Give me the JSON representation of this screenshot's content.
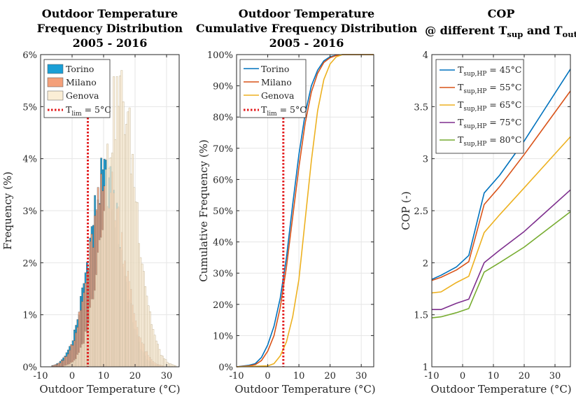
{
  "chart_data": [
    {
      "type": "bar",
      "title": [
        "Outdoor Temperature",
        "Frequency Distribution",
        "2005 - 2016"
      ],
      "xlabel": "Outdoor Temperature (°C)",
      "ylabel": "Frequency (%)",
      "xlim": [
        -10,
        34
      ],
      "ylim": [
        0,
        6
      ],
      "xticks": [
        "-10",
        "0",
        "10",
        "20",
        "30"
      ],
      "yticks": [
        "0%",
        "1%",
        "2%",
        "3%",
        "4%",
        "5%",
        "6%"
      ],
      "grid": true,
      "legend_position": "top-left",
      "series": [
        {
          "name": "Torino",
          "color": "#1a9fd6",
          "mean": 10.5,
          "sd": 5.3,
          "peak": 3.6
        },
        {
          "name": "Milano",
          "color": "#f4a07a",
          "mean": 11.2,
          "sd": 5.5,
          "peak": 3.5
        },
        {
          "name": "Genova",
          "color": "#fbeed6",
          "mean": 15.2,
          "sd": 5.3,
          "peak": 5.2
        }
      ],
      "reference_line": {
        "x": 5,
        "label_main": "T",
        "label_sub": "lim",
        "label_rest": " = 5°C",
        "color": "#e31a1c"
      }
    },
    {
      "type": "line",
      "title": [
        "Outdoor Temperature",
        "Cumulative Frequency Distribution",
        "2005 - 2016"
      ],
      "xlabel": "Outdoor Temperature (°C)",
      "ylabel": "Cumulative Frequency (%)",
      "xlim": [
        -10,
        34
      ],
      "ylim": [
        0,
        100
      ],
      "xticks": [
        "-10",
        "0",
        "10",
        "20",
        "30"
      ],
      "yticks": [
        "0%",
        "10%",
        "20%",
        "30%",
        "40%",
        "50%",
        "60%",
        "70%",
        "80%",
        "90%",
        "100%"
      ],
      "grid": true,
      "legend_position": "top-left",
      "series": [
        {
          "name": "Torino",
          "color": "#0072bd",
          "x": [
            -10,
            -6,
            -4,
            -2,
            0,
            2,
            4,
            6,
            8,
            10,
            12,
            14,
            16,
            18,
            20,
            22,
            24,
            28,
            34
          ],
          "y": [
            0,
            0.5,
            1,
            3,
            7,
            13,
            22,
            35,
            52,
            68,
            81,
            90,
            95,
            98,
            99.3,
            99.8,
            100,
            100,
            100
          ]
        },
        {
          "name": "Milano",
          "color": "#d95319",
          "x": [
            -10,
            -6,
            -4,
            -2,
            0,
            2,
            4,
            6,
            8,
            10,
            12,
            14,
            16,
            18,
            20,
            22,
            24,
            28,
            34
          ],
          "y": [
            0,
            0.3,
            0.7,
            2,
            5,
            10,
            19,
            32,
            48,
            64,
            78,
            88,
            94,
            97.5,
            99,
            99.7,
            100,
            100,
            100
          ]
        },
        {
          "name": "Genova",
          "color": "#edb120",
          "x": [
            -10,
            0,
            2,
            4,
            6,
            8,
            10,
            12,
            14,
            16,
            18,
            20,
            22,
            24,
            28,
            34
          ],
          "y": [
            0,
            0.3,
            1,
            3.5,
            8,
            16,
            28,
            47,
            66,
            82,
            92,
            97,
            99.3,
            100,
            100,
            100
          ]
        }
      ],
      "reference_line": {
        "x": 5,
        "label_main": "T",
        "label_sub": "lim",
        "label_rest": " = 5°C",
        "color": "#e31a1c"
      }
    },
    {
      "type": "line",
      "title": [
        "COP",
        "@ different T",
        "sup",
        " and T",
        "out"
      ],
      "xlabel": "Outdoor Temperature (°C)",
      "ylabel": "COP (-)",
      "xlim": [
        -10,
        35
      ],
      "ylim": [
        1,
        4
      ],
      "xticks": [
        "-10",
        "0",
        "10",
        "20",
        "30"
      ],
      "yticks": [
        "1",
        "1.5",
        "2",
        "2.5",
        "3",
        "3.5",
        "4"
      ],
      "grid": true,
      "legend_position": "top-left",
      "series": [
        {
          "name_main": "T",
          "name_sub": "sup,HP",
          "name_rest": " = 45°C",
          "color": "#0072bd",
          "x": [
            -10,
            -7,
            -2,
            2,
            7,
            12,
            20,
            35
          ],
          "y": [
            1.84,
            1.88,
            1.96,
            2.07,
            2.67,
            2.84,
            3.17,
            3.86
          ]
        },
        {
          "name_main": "T",
          "name_sub": "sup,HP",
          "name_rest": " = 55°C",
          "color": "#d95319",
          "x": [
            -10,
            -7,
            -2,
            2,
            7,
            12,
            20,
            35
          ],
          "y": [
            1.83,
            1.86,
            1.93,
            2.01,
            2.56,
            2.73,
            3.04,
            3.65
          ]
        },
        {
          "name_main": "T",
          "name_sub": "sup,HP",
          "name_rest": " = 65°C",
          "color": "#edb120",
          "x": [
            -10,
            -7,
            -2,
            2,
            7,
            12,
            20,
            35
          ],
          "y": [
            1.71,
            1.72,
            1.81,
            1.87,
            2.29,
            2.46,
            2.72,
            3.21
          ]
        },
        {
          "name_main": "T",
          "name_sub": "sup,HP",
          "name_rest": " = 75°C",
          "color": "#7e2f8e",
          "x": [
            -10,
            -7,
            -2,
            2,
            7,
            12,
            20,
            35
          ],
          "y": [
            1.55,
            1.55,
            1.61,
            1.65,
            2.0,
            2.12,
            2.3,
            2.7
          ]
        },
        {
          "name_main": "T",
          "name_sub": "sup,HP",
          "name_rest": " = 80°C",
          "color": "#77ac30",
          "x": [
            -10,
            -7,
            -2,
            2,
            7,
            12,
            20,
            35
          ],
          "y": [
            1.47,
            1.48,
            1.52,
            1.56,
            1.91,
            2.0,
            2.15,
            2.49
          ]
        }
      ]
    }
  ]
}
